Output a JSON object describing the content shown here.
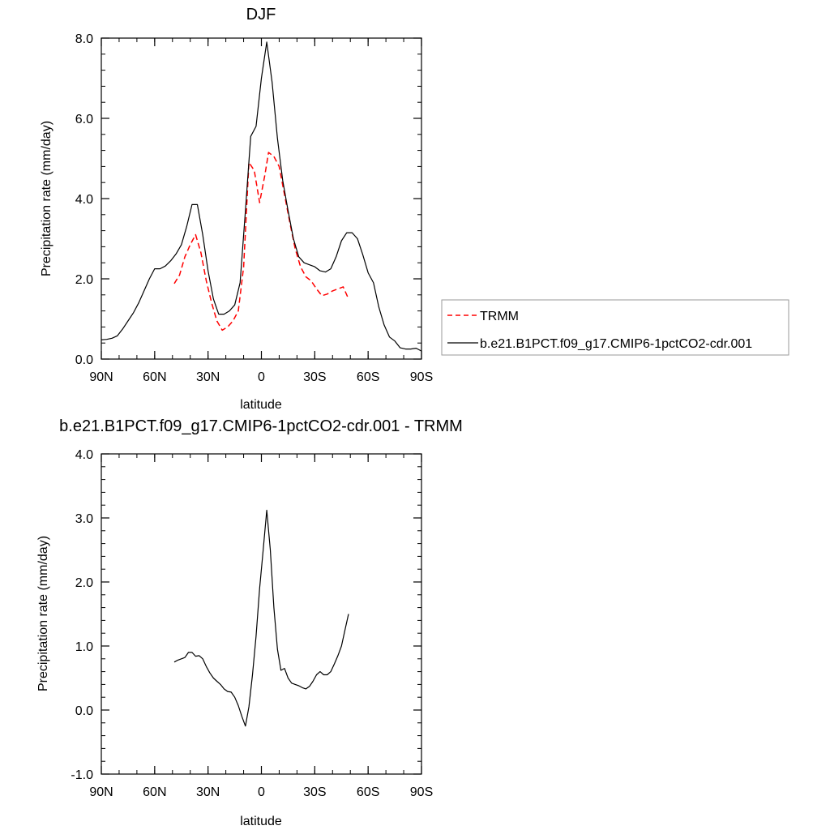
{
  "chart_data": [
    {
      "type": "line",
      "title": "DJF",
      "xlabel": "latitude",
      "ylabel": "Precipitation rate (mm/day)",
      "xlim": [
        90,
        -90
      ],
      "ylim": [
        0,
        8
      ],
      "x_tick_values": [
        90,
        60,
        30,
        0,
        -30,
        -60,
        -90
      ],
      "x_tick_labels": [
        "90N",
        "60N",
        "30N",
        "0",
        "30S",
        "60S",
        "90S"
      ],
      "y_tick_values": [
        0,
        2,
        4,
        6,
        8
      ],
      "y_tick_labels": [
        "0.0",
        "2.0",
        "4.0",
        "6.0",
        "8.0"
      ],
      "legend_position": "right",
      "series": [
        {
          "name": "TRMM",
          "color": "#ff0000",
          "dash": "dashed",
          "x": [
            49,
            46,
            43,
            40,
            37,
            34,
            31,
            28,
            25,
            22,
            19,
            16,
            13,
            10,
            7,
            4,
            1,
            -2,
            -4,
            -7,
            -10,
            -13,
            -16,
            -19,
            -22,
            -25,
            -28,
            -31,
            -34,
            -37,
            -40,
            -43,
            -46,
            -49
          ],
          "y": [
            1.88,
            2.1,
            2.55,
            2.85,
            3.1,
            2.65,
            1.95,
            1.4,
            0.95,
            0.72,
            0.8,
            0.95,
            1.2,
            2.3,
            4.9,
            4.7,
            3.9,
            4.6,
            5.15,
            5.05,
            4.8,
            4.1,
            3.4,
            2.75,
            2.3,
            2.05,
            1.95,
            1.75,
            1.58,
            1.62,
            1.7,
            1.75,
            1.8,
            1.5
          ]
        },
        {
          "name": "b.e21.B1PCT.f09_g17.CMIP6-1pctCO2-cdr.001",
          "color": "#000000",
          "dash": "solid",
          "x": [
            90,
            87,
            84,
            81,
            78,
            75,
            72,
            69,
            66,
            63,
            60,
            57,
            54,
            51,
            48,
            45,
            42,
            39,
            36,
            33,
            30,
            27,
            24,
            21,
            18,
            15,
            12,
            9,
            6,
            3,
            0,
            -3,
            -6,
            -9,
            -12,
            -15,
            -18,
            -21,
            -24,
            -27,
            -30,
            -33,
            -36,
            -39,
            -42,
            -45,
            -48,
            -51,
            -54,
            -57,
            -60,
            -63,
            -66,
            -69,
            -72,
            -75,
            -78,
            -81,
            -84,
            -87,
            -90
          ],
          "y": [
            0.48,
            0.49,
            0.52,
            0.58,
            0.75,
            0.95,
            1.15,
            1.4,
            1.7,
            2.0,
            2.25,
            2.25,
            2.32,
            2.45,
            2.62,
            2.85,
            3.3,
            3.85,
            3.85,
            3.1,
            2.2,
            1.5,
            1.12,
            1.12,
            1.2,
            1.35,
            1.9,
            3.7,
            5.55,
            5.8,
            7.0,
            7.9,
            6.9,
            5.5,
            4.45,
            3.7,
            3.0,
            2.55,
            2.4,
            2.35,
            2.3,
            2.2,
            2.17,
            2.25,
            2.55,
            2.95,
            3.15,
            3.15,
            3.0,
            2.6,
            2.15,
            1.9,
            1.3,
            0.85,
            0.55,
            0.45,
            0.28,
            0.25,
            0.25,
            0.27,
            0.2
          ]
        }
      ]
    },
    {
      "type": "line",
      "title": "b.e21.B1PCT.f09_g17.CMIP6-1pctCO2-cdr.001 - TRMM",
      "xlabel": "latitude",
      "ylabel": "Precipitation rate (mm/day)",
      "xlim": [
        90,
        -90
      ],
      "ylim": [
        -1,
        4
      ],
      "x_tick_values": [
        90,
        60,
        30,
        0,
        -30,
        -60,
        -90
      ],
      "x_tick_labels": [
        "90N",
        "60N",
        "30N",
        "0",
        "30S",
        "60S",
        "90S"
      ],
      "y_tick_values": [
        -1,
        0,
        1,
        2,
        3,
        4
      ],
      "y_tick_labels": [
        "-1.0",
        "0.0",
        "1.0",
        "2.0",
        "3.0",
        "4.0"
      ],
      "series": [
        {
          "color": "#000000",
          "dash": "solid",
          "x": [
            49,
            47,
            45,
            43,
            41,
            39,
            37,
            35,
            33,
            31,
            29,
            27,
            25,
            23,
            21,
            19,
            17,
            15,
            13,
            11,
            9,
            7,
            5,
            3,
            1,
            -1,
            -3,
            -5,
            -7,
            -9,
            -11,
            -13,
            -15,
            -17,
            -19,
            -21,
            -23,
            -25,
            -27,
            -29,
            -31,
            -33,
            -35,
            -37,
            -39,
            -41,
            -43,
            -45,
            -47,
            -49
          ],
          "y": [
            0.75,
            0.78,
            0.8,
            0.82,
            0.9,
            0.9,
            0.84,
            0.85,
            0.8,
            0.68,
            0.58,
            0.5,
            0.45,
            0.4,
            0.33,
            0.29,
            0.28,
            0.2,
            0.07,
            -0.1,
            -0.25,
            0.05,
            0.55,
            1.15,
            1.9,
            2.5,
            3.12,
            2.5,
            1.6,
            0.95,
            0.62,
            0.65,
            0.5,
            0.42,
            0.4,
            0.38,
            0.35,
            0.33,
            0.37,
            0.45,
            0.55,
            0.6,
            0.55,
            0.55,
            0.6,
            0.72,
            0.85,
            1.0,
            1.25,
            1.5
          ]
        }
      ]
    }
  ]
}
